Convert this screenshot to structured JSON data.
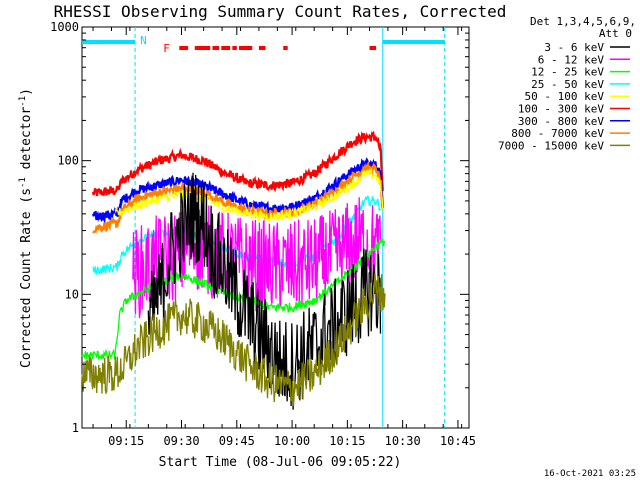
{
  "chart_data": {
    "type": "line",
    "title": "RHESSI Observing Summary Count Rates, Corrected",
    "xlabel": "Start Time (08-Jul-06 09:05:22)",
    "ylabel": "Corrected Count Rate (s⁻¹ detector⁻¹)",
    "ylabel_main": "Corrected Count Rate (s",
    "ylabel_sup1": "-1",
    "ylabel_mid": " detector",
    "ylabel_sup2": "-1",
    "ylabel_end": ")",
    "xlim": [
      9.05,
      10.8
    ],
    "ylim": [
      1,
      1000
    ],
    "yscale": "log",
    "y_ticks": [
      {
        "v": 1,
        "label": "1"
      },
      {
        "v": 10,
        "label": "10"
      },
      {
        "v": 100,
        "label": "100"
      },
      {
        "v": 1000,
        "label": "1000"
      }
    ],
    "x_ticks": [
      {
        "v": 9.25,
        "label": "09:15"
      },
      {
        "v": 9.5,
        "label": "09:30"
      },
      {
        "v": 9.75,
        "label": "09:45"
      },
      {
        "v": 10.0,
        "label": "10:00"
      },
      {
        "v": 10.25,
        "label": "10:15"
      },
      {
        "v": 10.5,
        "label": "10:30"
      },
      {
        "v": 10.75,
        "label": "10:45"
      }
    ],
    "legend": {
      "placement": "right",
      "header": [
        "Det 1,3,4,5,6,9,",
        "Att 0"
      ],
      "entries": [
        {
          "label": "3 - 6 keV",
          "color": "#000000"
        },
        {
          "label": "6 - 12 keV",
          "color": "#ff00ff"
        },
        {
          "label": "12 - 25 keV",
          "color": "#00ff00"
        },
        {
          "label": "25 - 50 keV",
          "color": "#00ffff"
        },
        {
          "label": "50 - 100 keV",
          "color": "#ffff00"
        },
        {
          "label": "100 - 300 keV",
          "color": "#ff0000"
        },
        {
          "label": "300 - 800 keV",
          "color": "#0000ff"
        },
        {
          "label": "800 - 7000 keV",
          "color": "#ff8000"
        },
        {
          "label": "7000 - 15000 keV",
          "color": "#808000"
        }
      ]
    },
    "series": [
      {
        "name": "100 - 300 keV",
        "color": "#ff0000",
        "x": [
          9.1,
          9.21,
          9.23,
          9.3,
          9.4,
          9.5,
          9.6,
          9.7,
          9.8,
          9.9,
          10.0,
          10.1,
          10.2,
          10.28,
          10.33,
          10.38,
          10.4,
          10.41
        ],
        "y": [
          57,
          60,
          70,
          85,
          100,
          110,
          100,
          80,
          68,
          65,
          68,
          80,
          110,
          140,
          150,
          150,
          120,
          60
        ]
      },
      {
        "name": "300 - 800 keV",
        "color": "#0000ff",
        "x": [
          9.1,
          9.21,
          9.23,
          9.3,
          9.4,
          9.5,
          9.6,
          9.7,
          9.8,
          9.9,
          10.0,
          10.1,
          10.2,
          10.28,
          10.33,
          10.38,
          10.4,
          10.41
        ],
        "y": [
          38,
          40,
          50,
          60,
          66,
          72,
          65,
          55,
          47,
          44,
          45,
          52,
          68,
          85,
          95,
          92,
          80,
          45
        ]
      },
      {
        "name": "800 - 7000 keV",
        "color": "#ff8000",
        "x": [
          9.1,
          9.21,
          9.23,
          9.3,
          9.4,
          9.5,
          9.6,
          9.7,
          9.8,
          9.9,
          10.0,
          10.1,
          10.2,
          10.28,
          10.33,
          10.38,
          10.4,
          10.41
        ],
        "y": [
          31,
          34,
          42,
          52,
          58,
          62,
          58,
          48,
          42,
          40,
          41,
          47,
          60,
          77,
          88,
          85,
          70,
          40
        ]
      },
      {
        "name": "50 - 100 keV",
        "color": "#ffff00",
        "x": [
          9.2,
          9.3,
          9.4,
          9.5,
          9.6,
          9.7,
          9.8,
          9.9,
          10.0,
          10.1,
          10.2,
          10.28,
          10.33,
          10.38,
          10.4,
          10.41
        ],
        "y": [
          40,
          46,
          52,
          56,
          52,
          44,
          40,
          38,
          40,
          45,
          55,
          68,
          80,
          78,
          65,
          45
        ]
      },
      {
        "name": "25 - 50 keV",
        "color": "#00ffff",
        "x": [
          9.1,
          9.21,
          9.23,
          9.3,
          9.4,
          9.5,
          9.6,
          9.7,
          9.8,
          9.9,
          10.0,
          10.1,
          10.2,
          10.28,
          10.33,
          10.38,
          10.4
        ],
        "y": [
          15,
          16,
          20,
          25,
          28,
          30,
          26,
          22,
          19,
          18,
          17,
          19,
          26,
          38,
          50,
          50,
          45
        ]
      },
      {
        "name": "6 - 12 keV",
        "color": "#ff00ff",
        "x": [
          9.28,
          9.35,
          9.4,
          9.5,
          9.55,
          9.6,
          9.65,
          9.7,
          9.8,
          9.9,
          10.0,
          10.1,
          10.2,
          10.3,
          10.35,
          10.4
        ],
        "y": [
          14,
          16,
          18,
          20,
          24,
          22,
          20,
          19,
          17,
          16,
          16,
          17,
          20,
          25,
          24,
          20
        ]
      },
      {
        "name": "12 - 25 keV",
        "color": "#00ff00",
        "x": [
          9.05,
          9.2,
          9.22,
          9.25,
          9.3,
          9.4,
          9.5,
          9.6,
          9.7,
          9.8,
          9.9,
          10.0,
          10.1,
          10.2,
          10.3,
          10.38,
          10.42
        ],
        "y": [
          3.5,
          3.5,
          7,
          9,
          10,
          12,
          14,
          12,
          10,
          9,
          8,
          8,
          9,
          12,
          17,
          23,
          25
        ]
      },
      {
        "name": "3 - 6 keV",
        "color": "#000000",
        "x": [
          9.35,
          9.4,
          9.45,
          9.5,
          9.55,
          9.6,
          9.65,
          9.7,
          9.75,
          9.8,
          9.85,
          9.9,
          9.95,
          10.0,
          10.05,
          10.1,
          10.15,
          10.2,
          10.25,
          10.3,
          10.35,
          10.4
        ],
        "y": [
          6,
          10,
          20,
          30,
          40,
          35,
          20,
          15,
          10,
          7,
          5,
          4,
          3,
          3,
          3.5,
          4,
          5,
          6,
          7.5,
          9,
          11,
          10
        ]
      },
      {
        "name": "7000 - 15000 keV",
        "color": "#808000",
        "x": [
          9.05,
          9.2,
          9.25,
          9.3,
          9.4,
          9.5,
          9.6,
          9.7,
          9.8,
          9.9,
          10.0,
          10.1,
          10.2,
          10.3,
          10.38,
          10.42
        ],
        "y": [
          2.5,
          2.5,
          3,
          4,
          5.5,
          7,
          6,
          4.5,
          3,
          2.2,
          2,
          2.5,
          4,
          7,
          11,
          10
        ]
      }
    ],
    "annotations": {
      "N_label": "N",
      "F_label": "F",
      "night_segments": [
        [
          9.05,
          9.29
        ],
        [
          10.41,
          10.69
        ]
      ],
      "flare_segments": [
        [
          9.49,
          9.53
        ],
        [
          9.56,
          9.63
        ],
        [
          9.64,
          9.67
        ],
        [
          9.68,
          9.72
        ],
        [
          9.73,
          9.75
        ],
        [
          9.76,
          9.82
        ],
        [
          9.85,
          9.88
        ],
        [
          9.96,
          9.98
        ],
        [
          10.35,
          10.38
        ]
      ],
      "vlines_dashed": [
        9.29,
        10.69
      ],
      "vlines_solid": [
        10.41
      ]
    },
    "grid": false
  },
  "footer": {
    "timestamp": "16-Oct-2021 03:25"
  }
}
